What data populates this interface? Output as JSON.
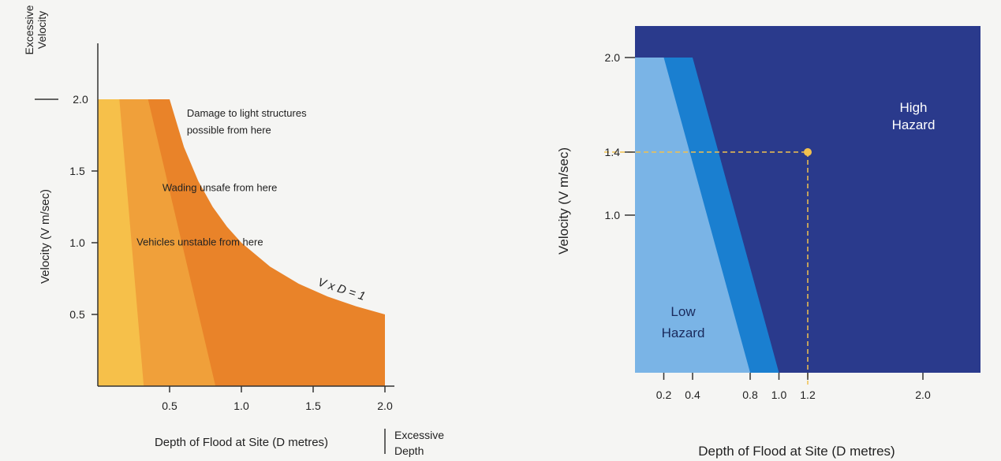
{
  "chart_data": [
    {
      "type": "area",
      "xlabel": "Depth of Flood at Site (D metres)",
      "ylabel": "Velocity (V m/sec)",
      "x_extreme_label": [
        "Excessive",
        "Depth"
      ],
      "y_extreme_label": [
        "Excessive",
        "Velocity"
      ],
      "xlim": [
        0,
        2.0
      ],
      "ylim": [
        0,
        2.0
      ],
      "x_ticks": [
        "0.5",
        "1.0",
        "1.5",
        "2.0"
      ],
      "x_tick_values": [
        0.5,
        1.0,
        1.5,
        2.0
      ],
      "y_ticks": [
        "0.5",
        "1.0",
        "1.5",
        "2.0"
      ],
      "y_tick_values": [
        0.5,
        1.0,
        1.5,
        2.0
      ],
      "curve_label": "V x D = 1",
      "curve": {
        "x": [
          0.5,
          0.6,
          0.7,
          0.8,
          0.9,
          1.0,
          1.2,
          1.4,
          1.6,
          1.8,
          2.0
        ],
        "y": [
          2.0,
          1.667,
          1.429,
          1.25,
          1.111,
          1.0,
          0.833,
          0.714,
          0.625,
          0.556,
          0.5
        ]
      },
      "series": [
        {
          "name": "Vehicles unstable from here",
          "color": "#f6c04a",
          "boundary_x_at_v2": 0.15,
          "boundary_x_at_v0": 0.32
        },
        {
          "name": "Wading unsafe from here",
          "color": "#f0a03a",
          "boundary_x_at_v2": 0.35,
          "boundary_x_at_v0": 0.82
        },
        {
          "name": "Damage to light structures possible from here",
          "color": "#e98329"
        }
      ],
      "annotations": [
        {
          "text": "Damage to light structures",
          "x": 0.62,
          "y": 1.88
        },
        {
          "text": "possible from here",
          "x": 0.62,
          "y": 1.76
        },
        {
          "text": "Wading unsafe from here",
          "x": 0.45,
          "y": 1.36
        },
        {
          "text": "Vehicles unstable from here",
          "x": 0.27,
          "y": 0.98
        }
      ]
    },
    {
      "type": "area",
      "xlabel": "Depth of Flood at Site (D metres)",
      "ylabel": "Velocity (V m/sec)",
      "xlim": [
        0,
        2.4
      ],
      "ylim": [
        0,
        2.2
      ],
      "x_ticks": [
        "0.2",
        "0.4",
        "0.8",
        "1.0",
        "1.2",
        "2.0"
      ],
      "x_tick_values": [
        0.2,
        0.4,
        0.8,
        1.0,
        1.2,
        2.0
      ],
      "y_ticks": [
        "1.0",
        "1.4",
        "2.0"
      ],
      "y_tick_values": [
        1.0,
        1.4,
        2.0
      ],
      "regions": [
        {
          "name": "Low Hazard",
          "label_lines": [
            "Low",
            "Hazard"
          ],
          "color": "#7ab4e6",
          "boundary": {
            "x": [
              0.2,
              0.8
            ],
            "y": [
              2.0,
              0
            ]
          }
        },
        {
          "name": "transition",
          "color": "#1a7fd0",
          "boundary": {
            "x": [
              0.4,
              1.0
            ],
            "y": [
              2.0,
              0
            ]
          }
        },
        {
          "name": "High Hazard",
          "label_lines": [
            "High",
            "Hazard"
          ],
          "color": "#2a3a8c"
        }
      ],
      "marker": {
        "x": 1.2,
        "y": 1.4,
        "color": "#f2c14e"
      }
    }
  ]
}
